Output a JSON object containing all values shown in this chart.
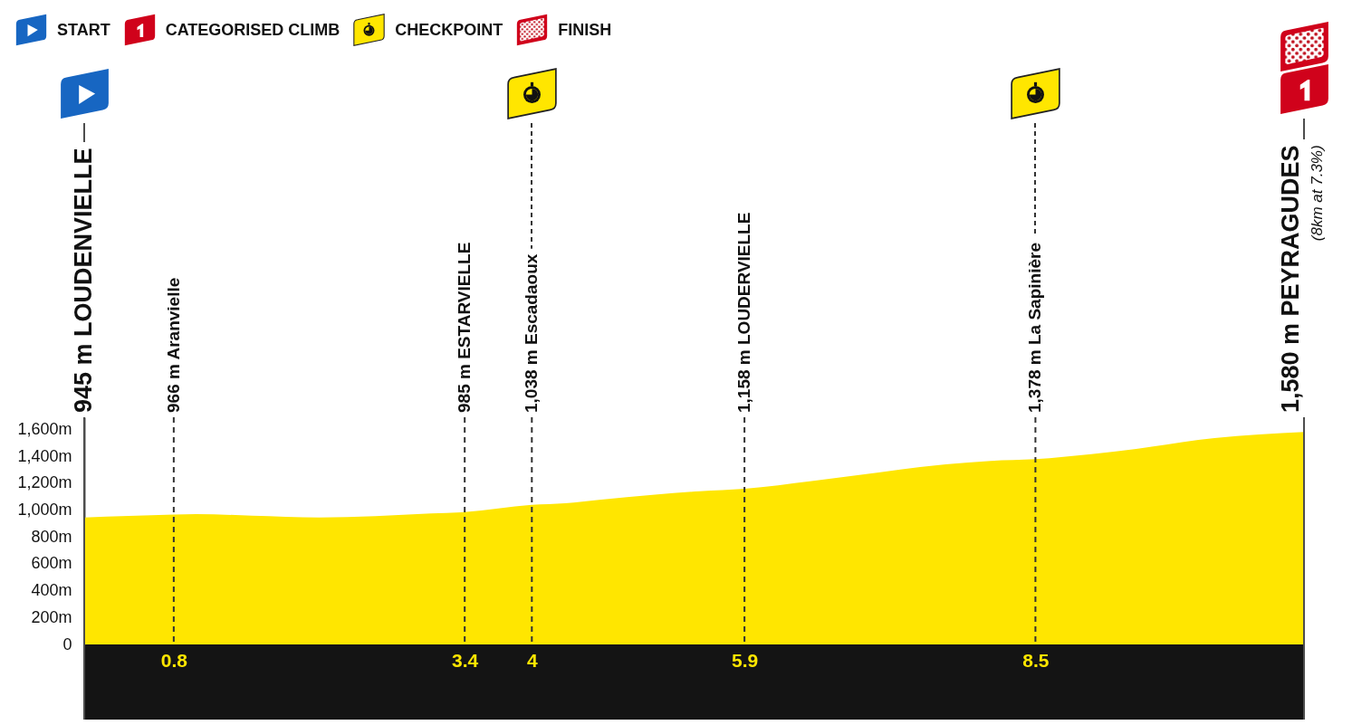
{
  "chart_data": {
    "type": "area",
    "x": [
      0,
      0.4,
      0.8,
      1.0,
      1.5,
      2.1,
      2.6,
      3.1,
      3.4,
      4,
      4.3,
      4.6,
      5.1,
      5.5,
      5.9,
      6.5,
      7.1,
      7.7,
      8.1,
      8.5,
      9.0,
      9.4,
      10.1,
      10.9
    ],
    "values": [
      945,
      956,
      966,
      970,
      958,
      945,
      955,
      975,
      985,
      1038,
      1050,
      1075,
      1115,
      1140,
      1158,
      1215,
      1280,
      1340,
      1365,
      1378,
      1415,
      1455,
      1535,
      1580
    ],
    "color": "#ffe600",
    "xlim": [
      0,
      10.9
    ],
    "xticks": [
      0.8,
      3.4,
      4,
      5.9,
      8.5
    ],
    "ylim": [
      0,
      1690
    ],
    "yticks": [
      0,
      {
        "value": 200,
        "label": "200m"
      },
      {
        "value": 400,
        "label": "400m"
      },
      {
        "value": 600,
        "label": "600m"
      },
      {
        "value": 800,
        "label": "800m"
      },
      {
        "value": 1000,
        "label": "1,000m"
      },
      {
        "value": 1200,
        "label": "1,200m"
      },
      {
        "value": 1400,
        "label": "1,400m"
      },
      {
        "value": 1600,
        "label": "1,600m"
      }
    ],
    "ref_lines": [
      {
        "axis": "x",
        "value": 0,
        "label": "945 m LOUDENVIELLE",
        "line_style": "solid",
        "color": "#4d4d4d"
      },
      {
        "axis": "x",
        "value": 0.8,
        "label": "966 m Aranvielle",
        "line_style": "dashed",
        "color": "#333333"
      },
      {
        "axis": "x",
        "value": 3.4,
        "label": "985 m ESTARVIELLE",
        "line_style": "dashed",
        "color": "#333333"
      },
      {
        "axis": "x",
        "value": 4,
        "label": "1,038 m Escadaoux",
        "line_style": "dashed",
        "color": "#333333"
      },
      {
        "axis": "x",
        "value": 5.9,
        "label": "1,158 m LOUDERVIELLE",
        "line_style": "dashed",
        "color": "#333333"
      },
      {
        "axis": "x",
        "value": 8.5,
        "label": "1,378 m La Sapinière",
        "line_style": "dashed",
        "color": "#333333"
      },
      {
        "axis": "x",
        "value": 10.9,
        "label": "1,580 m PEYRAGUDES",
        "line_style": "solid",
        "color": "#4d4d4d"
      }
    ],
    "annotations": [
      "START",
      "CATEGORISED CLIMB",
      "CHECKPOINT",
      "FINISH",
      "(8km at 7.3%)"
    ]
  }
}
